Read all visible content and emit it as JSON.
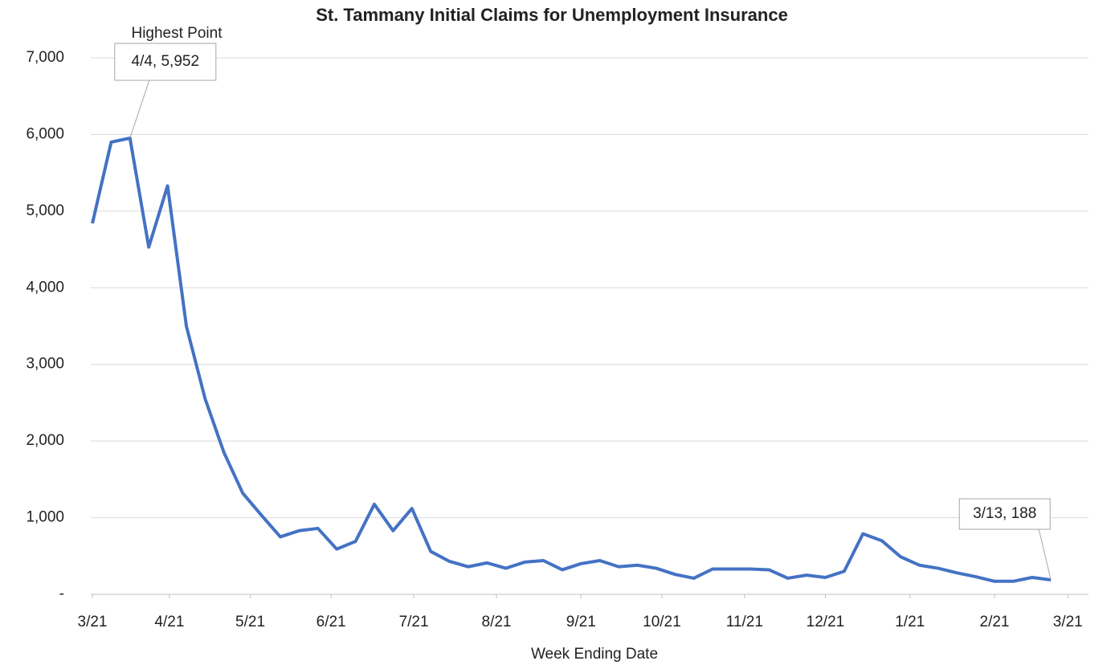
{
  "chart_data": {
    "type": "line",
    "title": "St. Tammany Initial Claims for Unemployment Insurance",
    "x_label": "Week Ending Date",
    "annotation": "Highest Point",
    "x": [
      "3/21",
      "3/28",
      "4/4",
      "4/11",
      "4/18",
      "4/25",
      "5/2",
      "5/9",
      "5/16",
      "5/23",
      "5/30",
      "6/6",
      "6/13",
      "6/20",
      "6/27",
      "7/4",
      "7/11",
      "7/18",
      "7/25",
      "8/1",
      "8/8",
      "8/15",
      "8/22",
      "8/29",
      "9/5",
      "9/12",
      "9/19",
      "9/26",
      "10/3",
      "10/10",
      "10/17",
      "10/24",
      "10/31",
      "11/7",
      "11/14",
      "11/21",
      "11/28",
      "12/5",
      "12/12",
      "12/19",
      "12/26",
      "1/2",
      "1/9",
      "1/16",
      "1/23",
      "1/30",
      "2/6",
      "2/13",
      "2/20",
      "2/27",
      "3/6",
      "3/13"
    ],
    "series": [
      {
        "name": "Initial Claims",
        "color": "#4472c4",
        "values": [
          4840,
          5900,
          5952,
          4530,
          5330,
          3500,
          2550,
          1850,
          1320,
          1030,
          750,
          830,
          860,
          590,
          690,
          1175,
          830,
          1120,
          560,
          430,
          360,
          410,
          340,
          420,
          440,
          320,
          400,
          440,
          360,
          380,
          340,
          260,
          210,
          330,
          330,
          330,
          320,
          210,
          250,
          220,
          300,
          790,
          700,
          490,
          380,
          340,
          280,
          230,
          170,
          170,
          220,
          188
        ],
        "value_labels": [
          null,
          null,
          "4/4,  5,952",
          null,
          null,
          null,
          null,
          null,
          null,
          null,
          null,
          null,
          null,
          null,
          null,
          null,
          null,
          null,
          null,
          null,
          null,
          null,
          null,
          null,
          null,
          null,
          null,
          null,
          null,
          null,
          null,
          null,
          null,
          null,
          null,
          null,
          null,
          null,
          null,
          null,
          null,
          null,
          null,
          null,
          null,
          null,
          null,
          null,
          null,
          null,
          null,
          "3/13,  188"
        ]
      }
    ],
    "xlim": [
      0,
      53
    ],
    "xticks": [
      {
        "value": 0,
        "label": "3/21"
      },
      {
        "value": 4.1,
        "label": "4/21"
      },
      {
        "value": 8.4,
        "label": "5/21"
      },
      {
        "value": 12.7,
        "label": "6/21"
      },
      {
        "value": 17.1,
        "label": "7/21"
      },
      {
        "value": 21.5,
        "label": "8/21"
      },
      {
        "value": 26,
        "label": "9/21"
      },
      {
        "value": 30.3,
        "label": "10/21"
      },
      {
        "value": 34.7,
        "label": "11/21"
      },
      {
        "value": 39,
        "label": "12/21"
      },
      {
        "value": 43.5,
        "label": "1/21"
      },
      {
        "value": 48,
        "label": "2/21"
      },
      {
        "value": 51.9,
        "label": "3/21"
      }
    ],
    "ylim": [
      0,
      7000
    ],
    "yticks": [
      {
        "value": 0,
        "label": "-"
      },
      {
        "value": 1000,
        "label": "1,000"
      },
      {
        "value": 2000,
        "label": "2,000"
      },
      {
        "value": 3000,
        "label": "3,000"
      },
      {
        "value": 4000,
        "label": "4,000"
      },
      {
        "value": 5000,
        "label": "5,000"
      },
      {
        "value": 6000,
        "label": "6,000"
      },
      {
        "value": 7000,
        "label": "7,000"
      }
    ],
    "grid": true
  }
}
